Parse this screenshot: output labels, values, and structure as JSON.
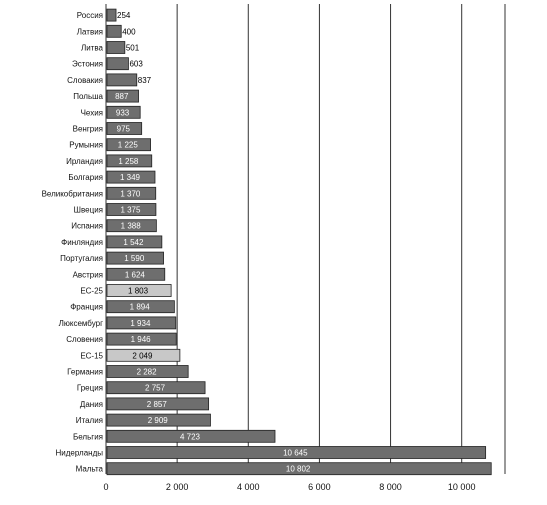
{
  "chart_data": {
    "type": "bar",
    "orientation": "horizontal",
    "categories": [
      "Россия",
      "Латвия",
      "Литва",
      "Эстония",
      "Словакия",
      "Польша",
      "Чехия",
      "Венгрия",
      "Румыния",
      "Ирландия",
      "Болгария",
      "Великобритания",
      "Швеция",
      "Испания",
      "Финляндия",
      "Португалия",
      "Австрия",
      "ЕС-25",
      "Франция",
      "Люксембург",
      "Словения",
      "ЕС-15",
      "Германия",
      "Греция",
      "Дания",
      "Италия",
      "Бельгия",
      "Нидерланды",
      "Мальта"
    ],
    "values": [
      254,
      400,
      501,
      603,
      837,
      887,
      933,
      975,
      1225,
      1258,
      1349,
      1370,
      1375,
      1388,
      1542,
      1590,
      1624,
      1803,
      1894,
      1934,
      1946,
      2049,
      2282,
      2757,
      2857,
      2909,
      4723,
      10645,
      10802
    ],
    "value_labels": [
      "254",
      "400",
      "501",
      "603",
      "837",
      "887",
      "933",
      "975",
      "1 225",
      "1 258",
      "1 349",
      "1 370",
      "1 375",
      "1 388",
      "1 542",
      "1 590",
      "1 624",
      "1 803",
      "1 894",
      "1 934",
      "1 946",
      "2 049",
      "2 282",
      "2 757",
      "2 857",
      "2 909",
      "4 723",
      "10 645",
      "10 802"
    ],
    "highlighted": [
      "ЕС-25",
      "ЕС-15"
    ],
    "xlim": [
      0,
      11000
    ],
    "x_ticks": [
      0,
      2000,
      4000,
      6000,
      8000,
      10000
    ],
    "x_tick_labels": [
      "0",
      "2 000",
      "4 000",
      "6 000",
      "8 000",
      "10 000"
    ],
    "grid": "vertical",
    "legend": "none",
    "title": "",
    "xlabel": "",
    "ylabel": "",
    "colors": {
      "bar": "#6e6e6e",
      "bar_highlight": "#c8c8c8",
      "bar_edge": "#222222",
      "grid": "#333333",
      "value_text": "#ffffff",
      "value_text_highlight": "#000000"
    }
  }
}
